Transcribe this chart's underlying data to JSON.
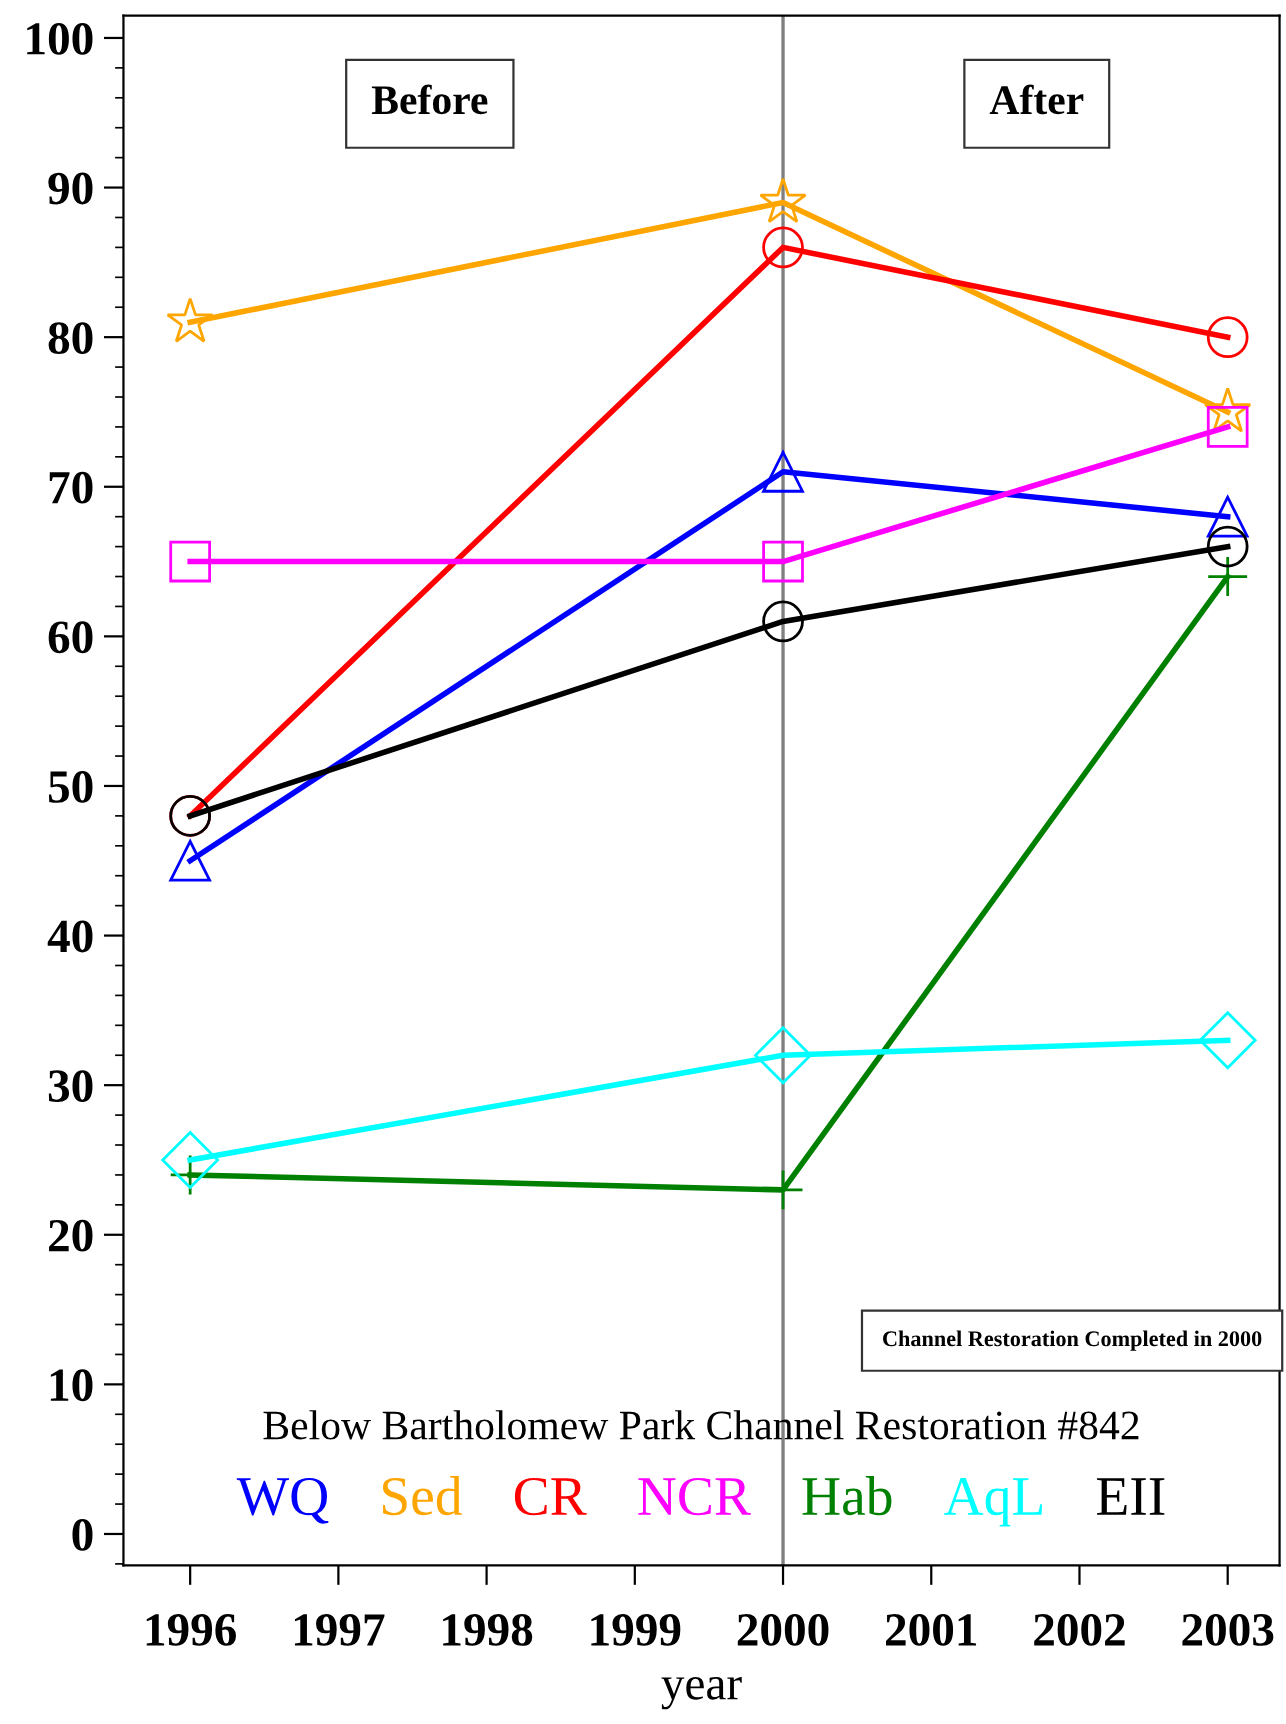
{
  "chart_data": {
    "type": "line",
    "xlabel": "year",
    "legend_title": "Below Bartholomew Park Channel Restoration #842",
    "legend": "bottom",
    "grid": false,
    "x": [
      1996,
      2000,
      2003
    ],
    "xlim": [
      1995.55,
      2003.35
    ],
    "xticks": [
      1996,
      1997,
      1998,
      1999,
      2000,
      2001,
      2002,
      2003
    ],
    "ylim": [
      -2.1,
      101.5
    ],
    "yticks": [
      0,
      10,
      20,
      30,
      40,
      50,
      60,
      70,
      80,
      90,
      100
    ],
    "series": [
      {
        "name": "WQ",
        "color": "#0000ff",
        "marker": "triangle",
        "values": [
          45,
          71,
          68
        ]
      },
      {
        "name": "Sed",
        "color": "#ffa500",
        "marker": "star",
        "values": [
          81,
          89,
          75
        ]
      },
      {
        "name": "CR",
        "color": "#ff0000",
        "marker": "circle",
        "values": [
          48,
          86,
          80
        ]
      },
      {
        "name": "NCR",
        "color": "#ff00ff",
        "marker": "square",
        "values": [
          65,
          65,
          74
        ]
      },
      {
        "name": "Hab",
        "color": "#008000",
        "marker": "cross",
        "values": [
          24,
          23,
          64
        ]
      },
      {
        "name": "AqL",
        "color": "#00ffff",
        "marker": "diamond",
        "values": [
          25,
          32,
          33
        ]
      },
      {
        "name": "EII",
        "color": "#000000",
        "marker": "circle",
        "values": [
          48,
          61,
          66
        ]
      }
    ],
    "ref_lines": [
      {
        "axis": "x",
        "value": 2000,
        "color": "#808080"
      }
    ],
    "annotations": [
      "Before",
      "After",
      "Channel Restoration Completed in 2000"
    ]
  }
}
